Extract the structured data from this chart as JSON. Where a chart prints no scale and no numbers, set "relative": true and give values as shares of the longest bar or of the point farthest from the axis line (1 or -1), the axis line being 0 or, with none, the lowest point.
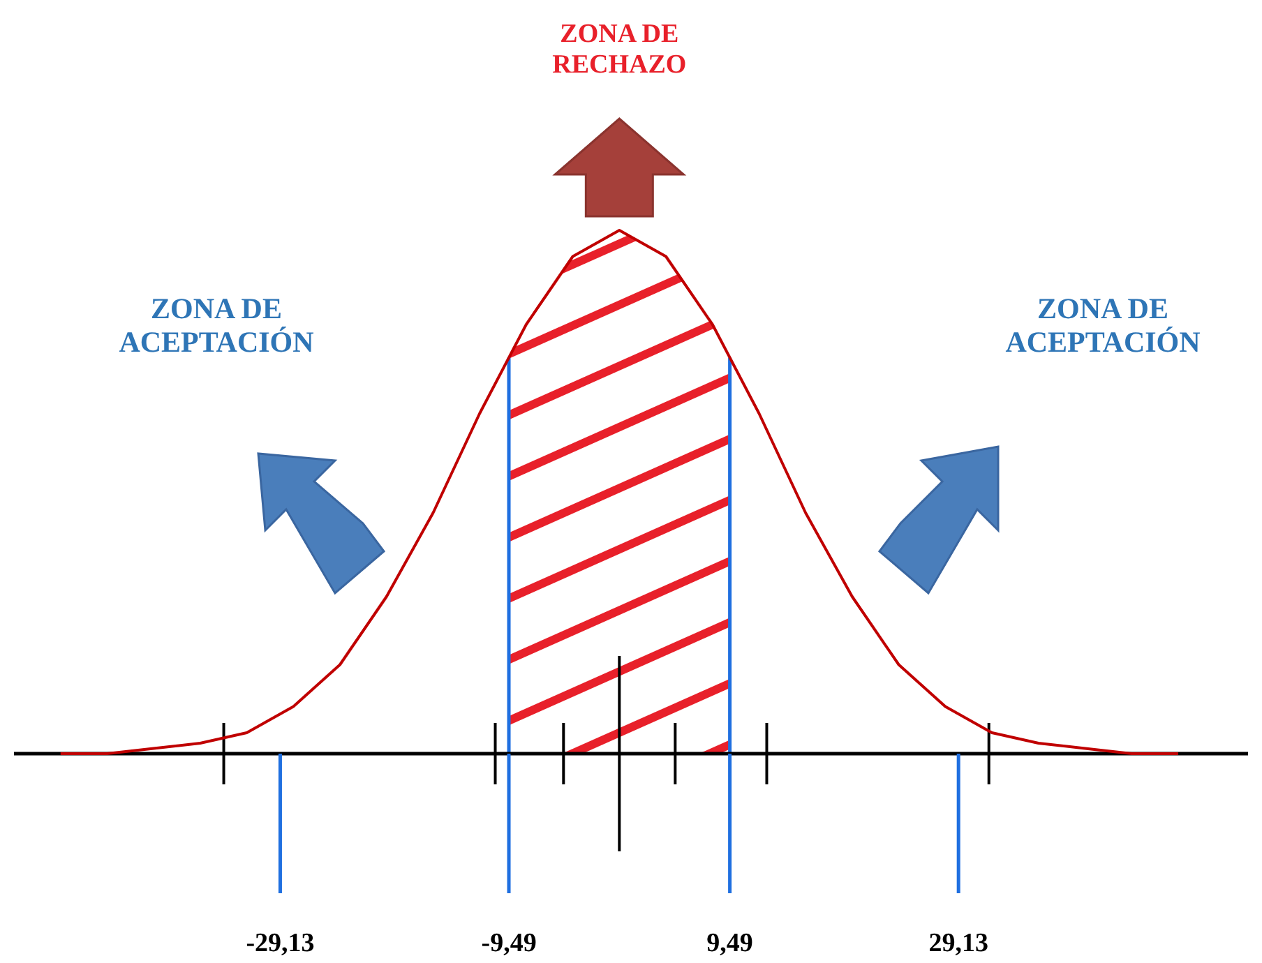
{
  "chart_data": {
    "type": "line",
    "relative": true,
    "xlim": [
      -52,
      54
    ],
    "x": [
      -48,
      -44,
      -40,
      -36,
      -32,
      -28,
      -24,
      -20,
      -16,
      -12,
      -8,
      -4,
      0,
      4,
      8,
      12,
      16,
      20,
      24,
      28,
      32,
      36,
      40,
      44,
      48
    ],
    "series": [
      {
        "color": "#c00000",
        "values": [
          0.0,
          0.0,
          0.01,
          0.02,
          0.04,
          0.09,
          0.17,
          0.3,
          0.46,
          0.65,
          0.82,
          0.95,
          1,
          0.95,
          0.82,
          0.65,
          0.46,
          0.3,
          0.17,
          0.09,
          0.04,
          0.02,
          0.01,
          0.0,
          0.0
        ]
      }
    ],
    "xticks": [
      {
        "value": -29.13,
        "label": "-29,13"
      },
      {
        "value": -9.49,
        "label": "-9,49"
      },
      {
        "value": 9.49,
        "label": "9,49"
      },
      {
        "value": 29.13,
        "label": "29,13"
      }
    ],
    "ref_lines": [
      {
        "axis": "x",
        "value": -9.49,
        "color": "#1f6fe0"
      },
      {
        "axis": "x",
        "value": 9.49,
        "color": "#1f6fe0"
      }
    ],
    "bands": [
      {
        "axis": "x",
        "from": -9.49,
        "to": 9.49,
        "color": "#e8202a"
      }
    ],
    "annotations": [
      "ZONA DE\nRECHAZO",
      "ZONA DE\nACEPTACIÓN",
      "ZONA DE\nACEPTACIÓN"
    ]
  }
}
